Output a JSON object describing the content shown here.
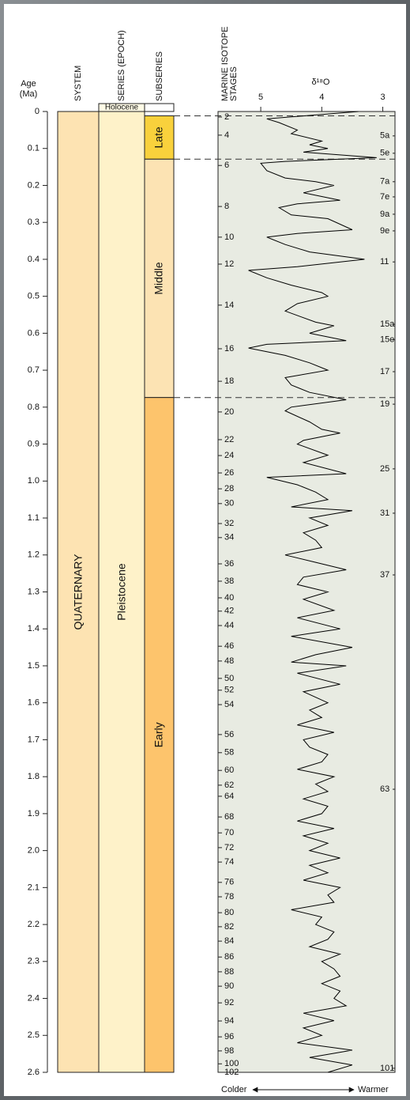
{
  "chart_data": {
    "type": "line",
    "y_label": [
      "Age",
      "(Ma)"
    ],
    "ylim": [
      0,
      2.6
    ],
    "yticks": [
      0,
      0.1,
      0.2,
      0.3,
      0.4,
      0.5,
      0.6,
      0.7,
      0.8,
      0.9,
      {
        "value": 1,
        "label": "1.0"
      },
      1.1,
      1.2,
      1.3,
      1.4,
      1.5,
      1.6,
      1.7,
      1.8,
      1.9,
      {
        "value": 2,
        "label": "2.0"
      },
      2.1,
      2.2,
      2.3,
      2.4,
      2.5,
      2.6
    ],
    "x_label": "δ¹⁸O",
    "xlim": [
      5.7,
      2.8
    ],
    "xticks": [
      5,
      4,
      3
    ],
    "column_headers": {
      "system": "SYSTEM",
      "series": "SERIES (EPOCH)",
      "subseries": "SUBSERIES",
      "mis": [
        "MARINE ISOTOPE",
        "STAGES"
      ]
    },
    "system": {
      "name": "QUATERNARY",
      "color": "#fde3b2"
    },
    "epochs": {
      "holocene": "Holocene",
      "pleistocene": "Pleistocene",
      "color": "#fef2c9"
    },
    "subseries": [
      {
        "name": "Late",
        "start": 0.0117,
        "end": 0.129,
        "color": "#f9d13c"
      },
      {
        "name": "Middle",
        "start": 0.129,
        "end": 0.774,
        "color": "#fce3b3"
      },
      {
        "name": "Early",
        "start": 0.774,
        "end": 2.6,
        "color": "#fdc46c"
      }
    ],
    "panel_color": "#e8ebe2",
    "series": [
      {
        "color": "#000000",
        "age": [
          0,
          0.02,
          0.03,
          0.05,
          0.06,
          0.08,
          0.09,
          0.1,
          0.11,
          0.125,
          0.135,
          0.14,
          0.16,
          0.18,
          0.19,
          0.2,
          0.22,
          0.24,
          0.25,
          0.26,
          0.28,
          0.29,
          0.32,
          0.33,
          0.34,
          0.36,
          0.38,
          0.4,
          0.42,
          0.43,
          0.45,
          0.47,
          0.49,
          0.5,
          0.52,
          0.54,
          0.57,
          0.58,
          0.6,
          0.62,
          0.63,
          0.64,
          0.66,
          0.68,
          0.7,
          0.72,
          0.74,
          0.76,
          0.78,
          0.8,
          0.81,
          0.84,
          0.86,
          0.87,
          0.89,
          0.9,
          0.93,
          0.95,
          0.98,
          0.99,
          1.01,
          1.03,
          1.05,
          1.07,
          1.08,
          1.1,
          1.12,
          1.14,
          1.16,
          1.18,
          1.2,
          1.22,
          1.24,
          1.26,
          1.28,
          1.3,
          1.32,
          1.35,
          1.37,
          1.4,
          1.42,
          1.45,
          1.47,
          1.49,
          1.5,
          1.52,
          1.55,
          1.57,
          1.6,
          1.62,
          1.64,
          1.66,
          1.68,
          1.7,
          1.72,
          1.74,
          1.76,
          1.78,
          1.8,
          1.82,
          1.84,
          1.86,
          1.88,
          1.9,
          1.92,
          1.94,
          1.96,
          1.98,
          2,
          2.02,
          2.04,
          2.06,
          2.08,
          2.1,
          2.12,
          2.14,
          2.16,
          2.18,
          2.2,
          2.22,
          2.24,
          2.26,
          2.28,
          2.3,
          2.32,
          2.34,
          2.36,
          2.38,
          2.4,
          2.42,
          2.44,
          2.46,
          2.48,
          2.5,
          2.52,
          2.54,
          2.56,
          2.58,
          2.6
        ],
        "values": [
          3.4,
          4.9,
          4.7,
          4.4,
          4.5,
          4,
          4.2,
          3.9,
          4.3,
          3.1,
          4.6,
          5,
          4.9,
          4.6,
          4.1,
          3.8,
          4.3,
          3.7,
          4.4,
          4.7,
          4.5,
          3.9,
          3.5,
          4.4,
          4.9,
          4.6,
          4.2,
          3.3,
          4.4,
          5.2,
          4.9,
          4.5,
          4,
          3.9,
          4.4,
          4.6,
          4.1,
          3.8,
          4.2,
          3.6,
          4.9,
          5.2,
          4.6,
          4.2,
          3.9,
          4.6,
          4.5,
          4.2,
          3.6,
          4.5,
          4.6,
          4.2,
          4,
          3.7,
          4.3,
          4.4,
          3.9,
          4.3,
          3.6,
          4.9,
          4.4,
          4.1,
          3.9,
          4.5,
          3.5,
          4.2,
          3.9,
          4.3,
          4.1,
          4,
          4.6,
          4.1,
          3.6,
          4.3,
          4.4,
          3.9,
          4.3,
          3.8,
          4.4,
          3.7,
          4.5,
          3.5,
          4.1,
          4.5,
          3.6,
          4.4,
          3.7,
          4.3,
          3.9,
          4.2,
          4,
          4.4,
          3.8,
          4.3,
          4.2,
          3.9,
          4,
          4.4,
          3.8,
          4.1,
          3.9,
          4.3,
          3.9,
          4,
          4.4,
          3.8,
          4.3,
          3.9,
          4.2,
          3.7,
          4.2,
          3.9,
          4.3,
          3.7,
          3.9,
          3.8,
          4.5,
          4,
          4.1,
          3.8,
          3.9,
          4.2,
          3.7,
          4,
          3.8,
          3.7,
          4,
          3.7,
          3.8,
          3.6,
          4.3,
          3.8,
          4.3,
          4,
          4.4,
          3.5,
          4.2,
          3.5,
          3.9
        ]
      }
    ],
    "mis_left": [
      {
        "label": "2",
        "age": 0.015
      },
      {
        "label": "4",
        "age": 0.064
      },
      {
        "label": "6",
        "age": 0.146
      },
      {
        "label": "8",
        "age": 0.257
      },
      {
        "label": "10",
        "age": 0.34
      },
      {
        "label": "12",
        "age": 0.413
      },
      {
        "label": "14",
        "age": 0.524
      },
      {
        "label": "16",
        "age": 0.642
      },
      {
        "label": "18",
        "age": 0.73
      },
      {
        "label": "20",
        "age": 0.813
      },
      {
        "label": "22",
        "age": 0.888
      },
      {
        "label": "24",
        "age": 0.931
      },
      {
        "label": "26",
        "age": 0.978
      },
      {
        "label": "28",
        "age": 1.021
      },
      {
        "label": "30",
        "age": 1.061
      },
      {
        "label": "32",
        "age": 1.115
      },
      {
        "label": "34",
        "age": 1.153
      },
      {
        "label": "36",
        "age": 1.224
      },
      {
        "label": "38",
        "age": 1.271
      },
      {
        "label": "40",
        "age": 1.316
      },
      {
        "label": "42",
        "age": 1.352
      },
      {
        "label": "44",
        "age": 1.391
      },
      {
        "label": "46",
        "age": 1.447
      },
      {
        "label": "48",
        "age": 1.487
      },
      {
        "label": "50",
        "age": 1.534
      },
      {
        "label": "52",
        "age": 1.566
      },
      {
        "label": "54",
        "age": 1.605
      },
      {
        "label": "56",
        "age": 1.686
      },
      {
        "label": "58",
        "age": 1.735
      },
      {
        "label": "60",
        "age": 1.783
      },
      {
        "label": "62",
        "age": 1.823
      },
      {
        "label": "64",
        "age": 1.853
      },
      {
        "label": "68",
        "age": 1.909
      },
      {
        "label": "70",
        "age": 1.952
      },
      {
        "label": "72",
        "age": 1.992
      },
      {
        "label": "74",
        "age": 2.031
      },
      {
        "label": "76",
        "age": 2.086
      },
      {
        "label": "78",
        "age": 2.125
      },
      {
        "label": "80",
        "age": 2.168
      },
      {
        "label": "82",
        "age": 2.206
      },
      {
        "label": "84",
        "age": 2.245
      },
      {
        "label": "86",
        "age": 2.288
      },
      {
        "label": "88",
        "age": 2.328
      },
      {
        "label": "90",
        "age": 2.367
      },
      {
        "label": "92",
        "age": 2.412
      },
      {
        "label": "94",
        "age": 2.461
      },
      {
        "label": "96",
        "age": 2.504
      },
      {
        "label": "98",
        "age": 2.542
      },
      {
        "label": "100",
        "age": 2.577
      },
      {
        "label": "102",
        "age": 2.6
      }
    ],
    "mis_right": [
      {
        "label": "5a",
        "age": 0.066
      },
      {
        "label": "5e",
        "age": 0.113
      },
      {
        "label": "7a",
        "age": 0.19
      },
      {
        "label": "7e",
        "age": 0.231
      },
      {
        "label": "9a",
        "age": 0.278
      },
      {
        "label": "9e",
        "age": 0.323
      },
      {
        "label": "11",
        "age": 0.407
      },
      {
        "label": "15a",
        "age": 0.576
      },
      {
        "label": "15e",
        "age": 0.618
      },
      {
        "label": "17",
        "age": 0.704
      },
      {
        "label": "19",
        "age": 0.792
      },
      {
        "label": "25",
        "age": 0.967
      },
      {
        "label": "31",
        "age": 1.087
      },
      {
        "label": "37",
        "age": 1.254
      },
      {
        "label": "63",
        "age": 1.834
      },
      {
        "label": "101",
        "age": 2.589
      }
    ],
    "footer": {
      "colder": "Colder",
      "warmer": "Warmer"
    }
  }
}
